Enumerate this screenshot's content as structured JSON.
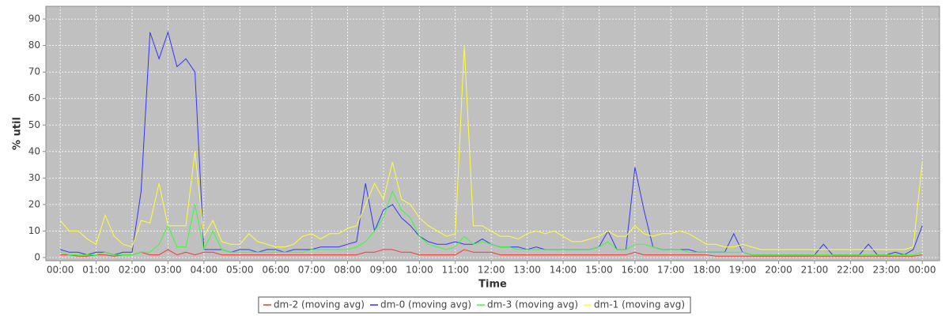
{
  "chart_data": {
    "type": "line",
    "ylabel": "% util",
    "xlabel": "Time",
    "x": [
      0,
      0.25,
      0.5,
      0.75,
      1,
      1.25,
      1.5,
      1.75,
      2,
      2.25,
      2.5,
      2.75,
      3,
      3.25,
      3.5,
      3.75,
      4,
      4.25,
      4.5,
      4.75,
      5,
      5.25,
      5.5,
      5.75,
      6,
      6.25,
      6.5,
      6.75,
      7,
      7.25,
      7.5,
      7.75,
      8,
      8.25,
      8.5,
      8.75,
      9,
      9.25,
      9.5,
      9.75,
      10,
      10.25,
      10.5,
      10.75,
      11,
      11.25,
      11.5,
      11.75,
      12,
      12.25,
      12.5,
      12.75,
      13,
      13.25,
      13.5,
      13.75,
      14,
      14.25,
      14.5,
      14.75,
      15,
      15.25,
      15.5,
      15.75,
      16,
      16.25,
      16.5,
      16.75,
      17,
      17.25,
      17.5,
      17.75,
      18,
      18.25,
      18.5,
      18.75,
      19,
      19.25,
      19.5,
      19.75,
      20,
      20.25,
      20.5,
      20.75,
      21,
      21.25,
      21.5,
      21.75,
      22,
      22.25,
      22.5,
      22.75,
      23,
      23.25,
      23.5,
      23.75,
      24
    ],
    "series": [
      {
        "name": "dm-2 (moving avg)",
        "color": "#ff3333",
        "values": [
          1,
          1,
          0.5,
          0.5,
          1,
          1,
          0.5,
          1,
          1,
          2,
          1,
          1,
          3,
          1,
          2,
          1,
          2,
          2,
          1,
          1,
          1,
          1,
          1,
          1,
          1,
          1,
          1,
          1,
          1,
          1,
          1,
          1,
          1,
          1,
          2,
          2,
          3,
          3,
          2,
          2,
          1,
          1,
          1,
          1,
          1,
          3,
          2,
          2,
          2,
          1,
          1,
          1,
          1,
          1,
          1,
          1,
          1,
          1,
          1,
          1,
          1,
          1,
          1,
          1,
          2,
          1,
          1,
          1,
          1,
          1,
          1,
          1,
          1,
          0.5,
          0.5,
          0.5,
          0.5,
          0.5,
          0.5,
          0.5,
          0.5,
          0.5,
          0.5,
          0.5,
          0.5,
          0.5,
          0.5,
          0.5,
          0.5,
          0.5,
          0.5,
          0.5,
          0.5,
          0.5,
          0.5,
          0.5,
          1
        ]
      },
      {
        "name": "dm-0 (moving avg)",
        "color": "#3333ff",
        "values": [
          3,
          2,
          2,
          1,
          2,
          2,
          1,
          2,
          2,
          25,
          85,
          75,
          85,
          72,
          75,
          70,
          3,
          3,
          3,
          2,
          3,
          3,
          2,
          3,
          3,
          2,
          3,
          3,
          3,
          4,
          4,
          4,
          5,
          6,
          28,
          10,
          18,
          20,
          15,
          12,
          8,
          6,
          5,
          5,
          6,
          5,
          5,
          7,
          5,
          4,
          4,
          4,
          3,
          4,
          3,
          3,
          3,
          3,
          3,
          3,
          4,
          10,
          3,
          3,
          34,
          18,
          4,
          3,
          3,
          3,
          3,
          2,
          2,
          2,
          2,
          9,
          2,
          1,
          1,
          1,
          1,
          1,
          1,
          1,
          1,
          5,
          1,
          1,
          1,
          1,
          5,
          1,
          1,
          2,
          1,
          3,
          12
        ]
      },
      {
        "name": "dm-3 (moving avg)",
        "color": "#33ff33",
        "values": [
          2,
          1,
          1,
          1,
          1,
          2,
          1,
          1,
          1,
          2,
          2,
          5,
          12,
          4,
          4,
          20,
          3,
          10,
          3,
          2,
          2,
          2,
          2,
          2,
          2,
          2,
          2,
          2,
          3,
          3,
          3,
          3,
          3,
          4,
          6,
          10,
          15,
          25,
          18,
          15,
          8,
          5,
          4,
          3,
          4,
          8,
          5,
          6,
          5,
          4,
          4,
          3,
          3,
          3,
          3,
          3,
          3,
          3,
          3,
          3,
          4,
          6,
          3,
          3,
          5,
          5,
          4,
          3,
          3,
          3,
          2,
          2,
          2,
          2,
          2,
          2,
          2,
          1,
          1,
          1,
          1,
          1,
          1,
          1,
          1,
          1,
          1,
          1,
          1,
          1,
          1,
          1,
          1,
          1,
          1,
          1,
          2
        ]
      },
      {
        "name": "dm-1 (moving avg)",
        "color": "#ffff33",
        "values": [
          14,
          10,
          10,
          7,
          5,
          16,
          8,
          5,
          4,
          14,
          13,
          28,
          12,
          12,
          12,
          40,
          8,
          14,
          6,
          5,
          5,
          9,
          6,
          5,
          4,
          4,
          5,
          8,
          9,
          7,
          9,
          9,
          11,
          12,
          20,
          28,
          22,
          36,
          22,
          20,
          15,
          12,
          10,
          8,
          9,
          80,
          12,
          12,
          10,
          8,
          8,
          7,
          9,
          10,
          9,
          10,
          8,
          6,
          6,
          7,
          8,
          10,
          8,
          8,
          12,
          9,
          8,
          9,
          9,
          10,
          9,
          7,
          5,
          5,
          4,
          4,
          5,
          4,
          3,
          3,
          3,
          3,
          3,
          3,
          3,
          3,
          3,
          3,
          3,
          3,
          3,
          3,
          3,
          3,
          3,
          4,
          36
        ]
      }
    ],
    "xlim": [
      -0.4,
      24.48
    ],
    "xticks": [
      {
        "value": 0,
        "label": "00:00"
      },
      {
        "value": 1,
        "label": "01:00"
      },
      {
        "value": 2,
        "label": "02:00"
      },
      {
        "value": 3,
        "label": "03:00"
      },
      {
        "value": 4,
        "label": "04:00"
      },
      {
        "value": 5,
        "label": "05:00"
      },
      {
        "value": 6,
        "label": "06:00"
      },
      {
        "value": 7,
        "label": "07:00"
      },
      {
        "value": 8,
        "label": "08:00"
      },
      {
        "value": 9,
        "label": "09:00"
      },
      {
        "value": 10,
        "label": "10:00"
      },
      {
        "value": 11,
        "label": "11:00"
      },
      {
        "value": 12,
        "label": "12:00"
      },
      {
        "value": 13,
        "label": "13:00"
      },
      {
        "value": 14,
        "label": "14:00"
      },
      {
        "value": 15,
        "label": "15:00"
      },
      {
        "value": 16,
        "label": "16:00"
      },
      {
        "value": 17,
        "label": "17:00"
      },
      {
        "value": 18,
        "label": "18:00"
      },
      {
        "value": 19,
        "label": "19:00"
      },
      {
        "value": 20,
        "label": "20:00"
      },
      {
        "value": 21,
        "label": "21:00"
      },
      {
        "value": 22,
        "label": "22:00"
      },
      {
        "value": 23,
        "label": "23:00"
      },
      {
        "value": 24,
        "label": "00:00"
      }
    ],
    "ylim": [
      -1.2,
      94.8
    ],
    "yticks": [
      0,
      10,
      20,
      30,
      40,
      50,
      60,
      70,
      80,
      90
    ],
    "grid": true,
    "legend": "bottom"
  }
}
